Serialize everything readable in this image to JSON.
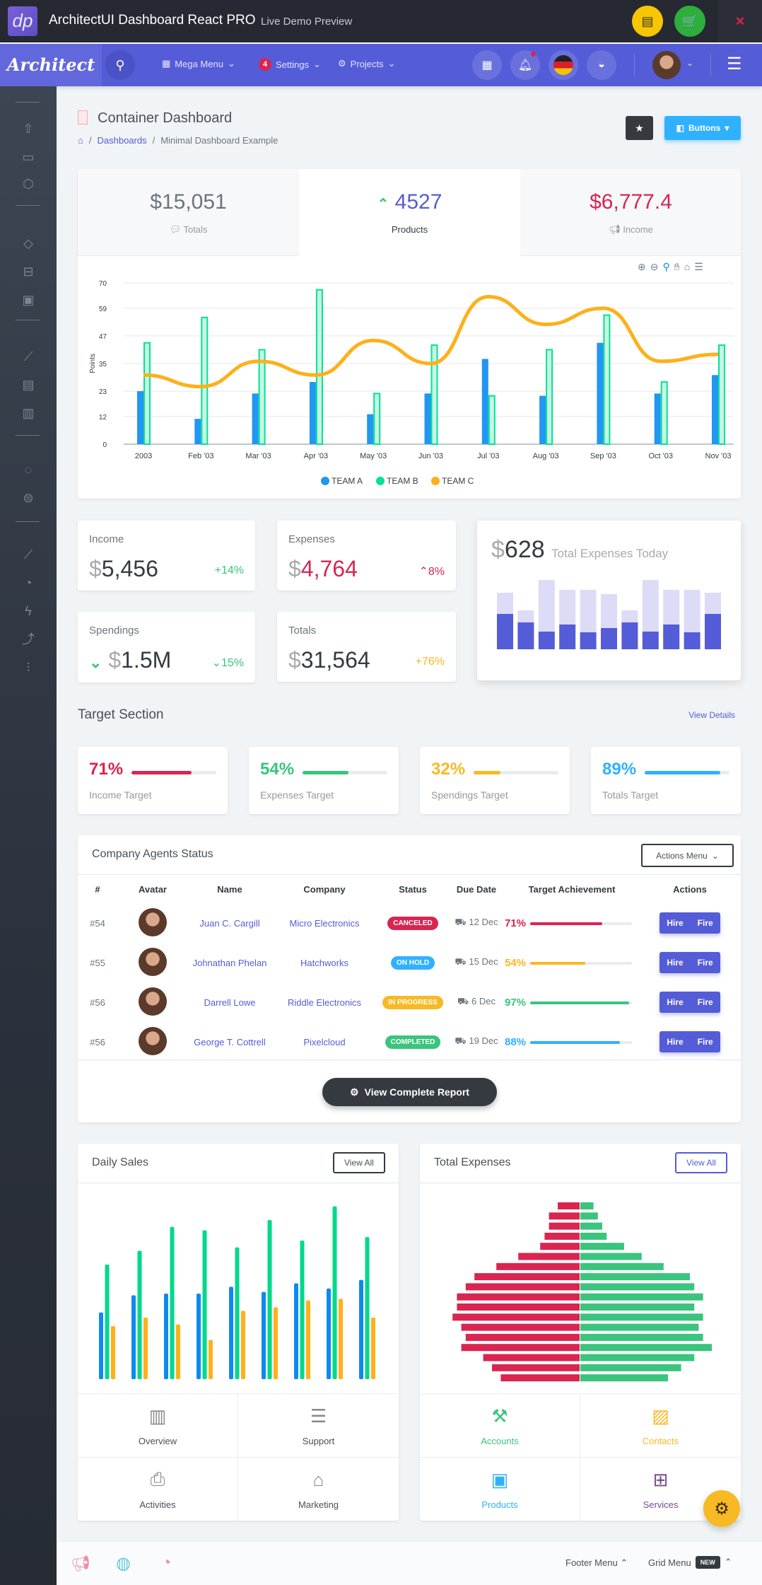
{
  "topbar": {
    "logo": "dp",
    "title": "ArchitectUI Dashboard React PRO",
    "subtitle": "Live Demo Preview",
    "close": "×"
  },
  "header": {
    "logo": "Architect",
    "mega_menu": "Mega Menu",
    "settings_badge": "4",
    "settings": "Settings",
    "projects": "Projects"
  },
  "page": {
    "title": "Container Dashboard",
    "breadcrumb": [
      "Dashboards",
      "Minimal Dashboard Example"
    ],
    "buttons_label": "Buttons"
  },
  "tabs": [
    {
      "value": "$15,051",
      "label": "Totals",
      "color": "#6c757d"
    },
    {
      "value": "4527",
      "label": "Products",
      "color": "#545cd8"
    },
    {
      "value": "$6,777.4",
      "label": "Income",
      "color": "#d92550"
    }
  ],
  "chart_data": [
    {
      "type": "bar+line",
      "title": "",
      "ylabel": "Points",
      "ylim": [
        0,
        70
      ],
      "yticks": [
        0,
        12,
        23,
        35,
        47,
        59,
        70
      ],
      "categories": [
        "2003",
        "Feb '03",
        "Mar '03",
        "Apr '03",
        "May '03",
        "Jun '03",
        "Jul '03",
        "Aug '03",
        "Sep '03",
        "Oct '03",
        "Nov '03"
      ],
      "series": [
        {
          "name": "TEAM A",
          "type": "bar",
          "color": "#2196f3",
          "values": [
            23,
            11,
            22,
            27,
            13,
            22,
            37,
            21,
            44,
            22,
            30
          ]
        },
        {
          "name": "TEAM B",
          "type": "bar",
          "color": "#00e396",
          "values": [
            44,
            55,
            41,
            67,
            22,
            43,
            21,
            41,
            56,
            27,
            43
          ]
        },
        {
          "name": "TEAM C",
          "type": "line",
          "color": "#feb019",
          "values": [
            30,
            25,
            36,
            30,
            45,
            35,
            64,
            52,
            59,
            36,
            39
          ]
        }
      ],
      "legend": "bottom"
    },
    {
      "type": "stacked-bar",
      "title": "Total Expenses Today",
      "series": [
        {
          "name": "base",
          "color": "#545cd8",
          "values": [
            50,
            38,
            25,
            35,
            24,
            30,
            38,
            25,
            35,
            24,
            50
          ]
        },
        {
          "name": "rest",
          "color": "#dcdcf7",
          "values": [
            30,
            17,
            73,
            49,
            60,
            48,
            17,
            73,
            49,
            60,
            30
          ]
        }
      ]
    },
    {
      "type": "bar",
      "title": "Daily Sales",
      "series": [
        {
          "name": "blue",
          "color": "#0d8af0",
          "values": [
            39,
            49,
            50,
            50,
            54,
            51,
            56,
            53,
            58
          ]
        },
        {
          "name": "green",
          "color": "#00d98b",
          "values": [
            67,
            75,
            89,
            87,
            77,
            93,
            81,
            101,
            83
          ]
        },
        {
          "name": "orange",
          "color": "#ffb01a",
          "values": [
            31,
            36,
            32,
            23,
            40,
            42,
            46,
            47,
            36
          ]
        }
      ]
    },
    {
      "type": "bar",
      "title": "Total Expenses",
      "orientation": "horizontal-pyramid",
      "series": [
        {
          "name": "red",
          "color": "#d92550",
          "values": [
            5,
            7,
            7,
            8,
            9,
            14,
            19,
            24,
            26,
            28,
            28,
            29,
            27,
            26,
            27,
            22,
            20,
            18
          ]
        },
        {
          "name": "green",
          "color": "#3ac47d",
          "values": [
            3,
            4,
            5,
            6,
            10,
            14,
            19,
            25,
            26,
            28,
            26,
            28,
            27,
            28,
            30,
            26,
            23,
            20
          ]
        }
      ]
    }
  ],
  "widgets": [
    {
      "label": "Income",
      "value": "5,456",
      "change": "+14%",
      "color": "#343a40",
      "change_color": "#3ac47d"
    },
    {
      "label": "Expenses",
      "value": "4,764",
      "change": "8%",
      "color": "#d92550",
      "change_color": "#d92550"
    },
    {
      "label": "Spendings",
      "value": "1.5M",
      "change": "15%",
      "color": "#343a40",
      "change_color": "#3ac47d"
    },
    {
      "label": "Totals",
      "value": "31,564",
      "change": "+76%",
      "color": "#343a40",
      "change_color": "#f7b924"
    }
  ],
  "expenses_today": {
    "value": "628",
    "label": "Total Expenses Today"
  },
  "targets": {
    "title": "Target Section",
    "view_details": "View Details",
    "items": [
      {
        "percent": "71%",
        "value": 71,
        "label": "Income Target",
        "color": "#d92550"
      },
      {
        "percent": "54%",
        "value": 54,
        "label": "Expenses Target",
        "color": "#3ac47d"
      },
      {
        "percent": "32%",
        "value": 32,
        "label": "Spendings Target",
        "color": "#f7b924"
      },
      {
        "percent": "89%",
        "value": 89,
        "label": "Totals Target",
        "color": "#30b1ff"
      }
    ]
  },
  "agents": {
    "title": "Company Agents Status",
    "actions_menu": "Actions Menu",
    "view_report": "View Complete Report",
    "columns": [
      "#",
      "Avatar",
      "Name",
      "Company",
      "Status",
      "Due Date",
      "Target Achievement",
      "Actions"
    ],
    "rows": [
      {
        "id": "#54",
        "name": "Juan C. Cargill",
        "company": "Micro Electronics",
        "status": "CANCELED",
        "status_color": "#d92550",
        "due": "12 Dec",
        "pct": "71%",
        "value": 71,
        "color": "#d92550"
      },
      {
        "id": "#55",
        "name": "Johnathan Phelan",
        "company": "Hatchworks",
        "status": "ON HOLD",
        "status_color": "#30b1ff",
        "due": "15 Dec",
        "pct": "54%",
        "value": 54,
        "color": "#f7b924"
      },
      {
        "id": "#56",
        "name": "Darrell Lowe",
        "company": "Riddle Electronics",
        "status": "IN PROGRESS",
        "status_color": "#f7b924",
        "due": "6 Dec",
        "pct": "97%",
        "value": 97,
        "color": "#3ac47d"
      },
      {
        "id": "#56",
        "name": "George T. Cottrell",
        "company": "Pixelcloud",
        "status": "COMPLETED",
        "status_color": "#3ac47d",
        "due": "19 Dec",
        "pct": "88%",
        "value": 88,
        "color": "#30b1ff"
      }
    ],
    "hire": "Hire",
    "fire": "Fire"
  },
  "daily_sales": {
    "title": "Daily Sales",
    "view_all": "View All",
    "cells": [
      "Overview",
      "Support",
      "Activities",
      "Marketing"
    ]
  },
  "total_expenses": {
    "title": "Total Expenses",
    "view_all": "View All",
    "cells": [
      "Accounts",
      "Contacts",
      "Products",
      "Services"
    ]
  },
  "footer": {
    "footer_menu": "Footer Menu",
    "grid_menu": "Grid Menu",
    "new_badge": "NEW"
  }
}
